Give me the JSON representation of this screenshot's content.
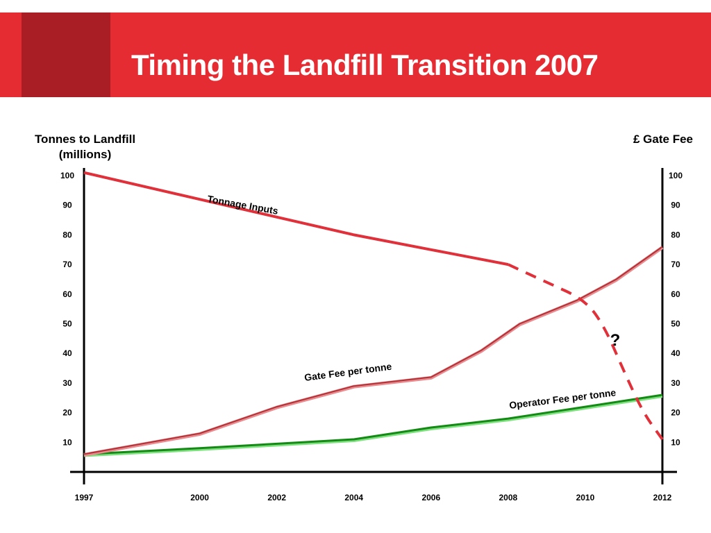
{
  "title": "Timing the Landfill Transition 2007",
  "colors": {
    "banner": "#e52c32",
    "banner_accent": "#a81e24",
    "tonnage": "#e0303a",
    "gate_fee": "#d9454a",
    "operator_fee": "#138a13",
    "operator_fee_shadow": "#7ee07e"
  },
  "chart_data": {
    "type": "line",
    "y_left_label": "Tonnes to Landfill (millions)",
    "y_right_label": "£ Gate Fee",
    "x_ticks": [
      "1997",
      "2000",
      "2002",
      "2004",
      "2006",
      "2008",
      "2010",
      "2012"
    ],
    "y_ticks": [
      "10",
      "20",
      "30",
      "40",
      "50",
      "60",
      "70",
      "80",
      "90",
      "100"
    ],
    "ylim": [
      0,
      100
    ],
    "grid": false,
    "series": [
      {
        "name": "Tonnage Inputs",
        "axis": "left",
        "style": "solid",
        "points": [
          [
            1997,
            101
          ],
          [
            2000,
            92
          ],
          [
            2002,
            86
          ],
          [
            2004,
            80
          ],
          [
            2006,
            75
          ],
          [
            2008,
            70
          ]
        ]
      },
      {
        "name": "Tonnage Inputs",
        "axis": "left",
        "style": "dashed",
        "points": [
          [
            2008,
            70
          ],
          [
            2009,
            64
          ],
          [
            2010,
            58
          ],
          [
            2010.5,
            49
          ],
          [
            2011,
            34
          ],
          [
            2011.5,
            20
          ],
          [
            2012,
            11
          ]
        ]
      },
      {
        "name": "Gate Fee per tonne",
        "axis": "right",
        "points": [
          [
            1997,
            6
          ],
          [
            2000,
            13
          ],
          [
            2002,
            22
          ],
          [
            2004,
            29
          ],
          [
            2006,
            32
          ],
          [
            2007.3,
            41
          ],
          [
            2008.3,
            50
          ],
          [
            2009.8,
            58
          ],
          [
            2010.8,
            65
          ],
          [
            2012,
            76
          ]
        ]
      },
      {
        "name": "Operator Fee per tonne",
        "axis": "right",
        "points": [
          [
            1997,
            6
          ],
          [
            2000,
            8
          ],
          [
            2002,
            9.5
          ],
          [
            2004,
            11
          ],
          [
            2006,
            15
          ],
          [
            2008,
            18
          ],
          [
            2010,
            22
          ],
          [
            2012,
            26
          ]
        ]
      }
    ],
    "annotations": [
      "?"
    ]
  }
}
